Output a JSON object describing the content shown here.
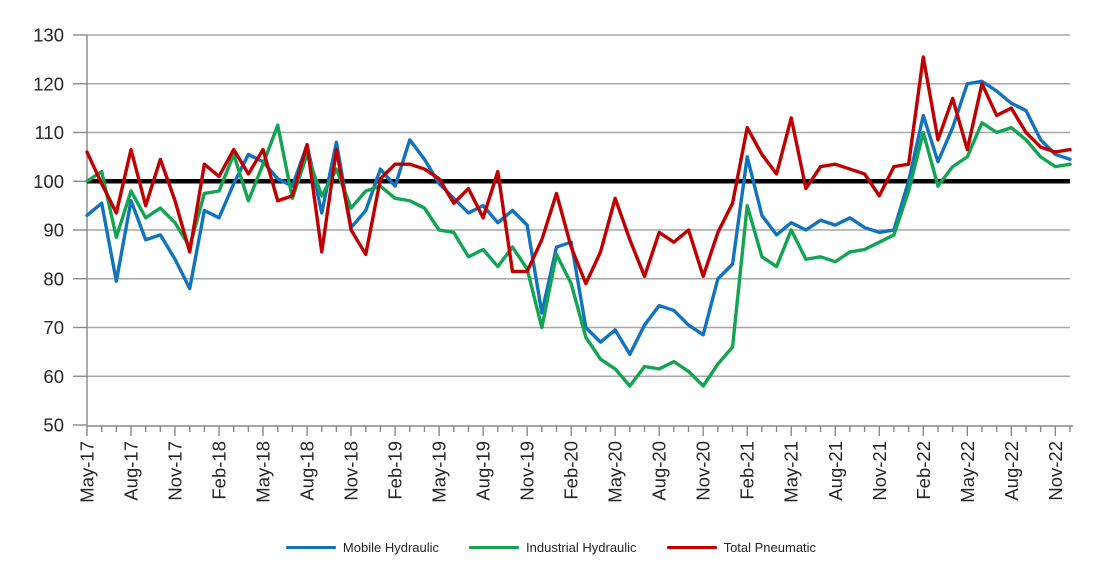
{
  "chart_data": {
    "type": "line",
    "title": "",
    "xlabel": "",
    "ylabel": "",
    "ylim": [
      50,
      130
    ],
    "y_ticks": [
      50,
      60,
      70,
      80,
      90,
      100,
      110,
      120,
      130
    ],
    "grid": true,
    "legend_position": "bottom",
    "x_start": "May-17",
    "x_end": "Dec-22",
    "x_tick_labels": [
      "May-17",
      "Aug-17",
      "Nov-17",
      "Feb-18",
      "May-18",
      "Aug-18",
      "Nov-18",
      "Feb-19",
      "May-19",
      "Aug-19",
      "Nov-19",
      "Feb-20",
      "May-20",
      "Aug-20",
      "Nov-20",
      "Feb-21",
      "May-21",
      "Aug-21",
      "Nov-21",
      "Feb-22",
      "May-22",
      "Aug-22",
      "Nov-22"
    ],
    "months_per_tick_label": 3,
    "reference_line": {
      "value": 100,
      "color": "#000000"
    },
    "series": [
      {
        "name": "Mobile Hydraulic",
        "color": "#1173BE",
        "values": [
          93,
          95.5,
          79.5,
          96,
          88,
          89,
          84,
          78,
          94,
          92.5,
          99.5,
          105.5,
          104,
          100.5,
          99,
          107.5,
          93.5,
          108,
          90.5,
          94,
          102.5,
          99,
          108.5,
          104.5,
          99.5,
          96.5,
          93.5,
          95,
          91.5,
          94,
          91,
          73,
          86.5,
          87.5,
          70,
          67,
          69.5,
          64.5,
          70.5,
          74.5,
          73.5,
          70.5,
          68.5,
          80,
          83,
          105,
          93,
          89,
          91.5,
          90,
          92,
          91,
          92.5,
          90.5,
          89.5,
          90,
          100,
          113.5,
          104,
          111,
          120,
          120.5,
          118.5,
          116,
          114.5,
          108.5,
          105.5,
          104.5
        ]
      },
      {
        "name": "Industrial Hydraulic",
        "color": "#13A452",
        "values": [
          100,
          102,
          88.5,
          98,
          92.5,
          94.5,
          91.5,
          86.5,
          97.5,
          98,
          105.5,
          96,
          103.5,
          111.5,
          96.5,
          105.5,
          97,
          102.5,
          94.5,
          98,
          99,
          96.5,
          96,
          94.5,
          90,
          89.5,
          84.5,
          86,
          82.5,
          86.5,
          82,
          70,
          85,
          79,
          68,
          63.5,
          61.5,
          58,
          62,
          61.5,
          63,
          61,
          58,
          62.5,
          66,
          95,
          84.5,
          82.5,
          90,
          84,
          84.5,
          83.5,
          85.5,
          86,
          87.5,
          89,
          98,
          110,
          99,
          103,
          105,
          112,
          110,
          111,
          108.5,
          105,
          103,
          103.5
        ]
      },
      {
        "name": "Total Pneumatic",
        "color": "#C00000",
        "values": [
          106,
          99.5,
          93.5,
          106.5,
          95,
          104.5,
          96,
          85.5,
          103.5,
          101,
          106.5,
          101.5,
          106.5,
          96,
          97,
          107.5,
          85.5,
          106.5,
          90,
          85,
          100.5,
          103.5,
          103.5,
          102.5,
          100.5,
          95.5,
          98.5,
          92.5,
          102,
          81.5,
          81.5,
          88,
          97.5,
          86.5,
          79,
          85.5,
          96.5,
          88,
          80.5,
          89.5,
          87.5,
          90,
          80.5,
          89.5,
          95.5,
          111,
          105.5,
          101.5,
          113,
          98.5,
          103,
          103.5,
          102.5,
          101.5,
          97,
          103,
          103.5,
          125.5,
          108.5,
          117,
          106.5,
          120,
          113.5,
          115,
          110,
          107,
          106,
          106.5
        ]
      }
    ],
    "style": {
      "gridline_color": "#A6A6A6",
      "axis_color": "#898989",
      "tick_label_color": "#262626",
      "background": "#FFFFFF"
    }
  }
}
